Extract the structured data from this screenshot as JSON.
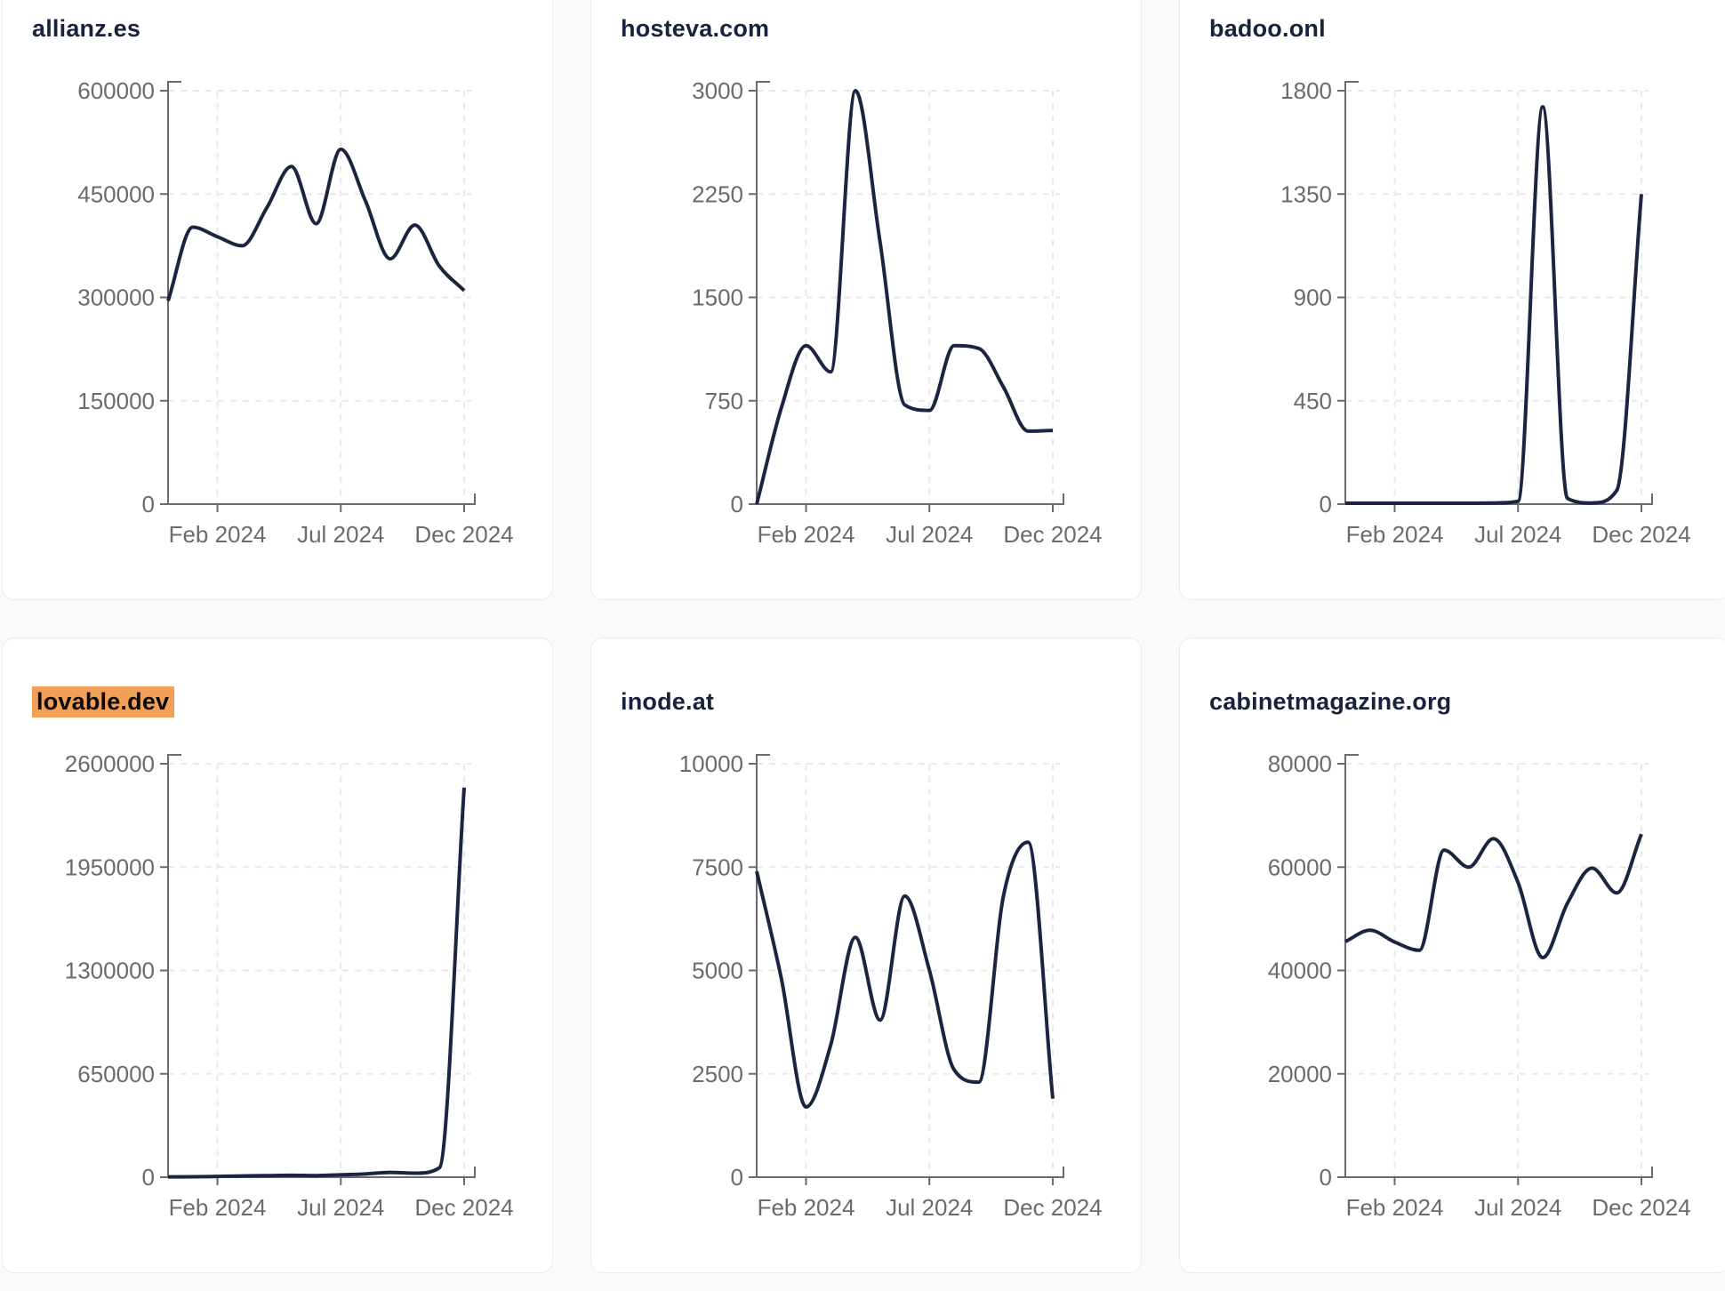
{
  "page": {
    "background": "#fafafb",
    "card_background": "#ffffff",
    "card_border": "#ebebee"
  },
  "style": {
    "line_color": "#1c2540",
    "title_color": "#18223c",
    "axis_color": "#6b6b6b",
    "tick_label_color": "#6b6b6b",
    "grid_color": "#e9e9ec",
    "highlight_background": "#f2a057",
    "highlight_text_color": "#0b0b0b"
  },
  "chart_data": [
    {
      "type": "line",
      "title": "allianz.es",
      "highlighted": false,
      "x": [
        "Dec 2023",
        "Jan 2024",
        "Feb 2024",
        "Mar 2024",
        "Apr 2024",
        "May 2024",
        "Jun 2024",
        "Jul 2024",
        "Aug 2024",
        "Sep 2024",
        "Oct 2024",
        "Nov 2024",
        "Dec 2024"
      ],
      "values": [
        295000,
        402000,
        388000,
        375000,
        430000,
        490000,
        407000,
        515000,
        440000,
        356000,
        405000,
        345000,
        310000
      ],
      "ylim": [
        0,
        600000
      ],
      "yticks": [
        0,
        150000,
        300000,
        450000,
        600000
      ],
      "xticks": [
        {
          "label": "Feb 2024",
          "index": 2
        },
        {
          "label": "Jul 2024",
          "index": 7
        },
        {
          "label": "Dec 2024",
          "index": 12
        }
      ],
      "grid": true,
      "legend": "none"
    },
    {
      "type": "line",
      "title": "hosteva.com",
      "highlighted": false,
      "x": [
        "Dec 2023",
        "Jan 2024",
        "Feb 2024",
        "Mar 2024",
        "Apr 2024",
        "May 2024",
        "Jun 2024",
        "Jul 2024",
        "Aug 2024",
        "Sep 2024",
        "Oct 2024",
        "Nov 2024",
        "Dec 2024"
      ],
      "values": [
        0,
        700,
        1150,
        960,
        3000,
        1900,
        720,
        680,
        1150,
        1130,
        850,
        530,
        535
      ],
      "ylim": [
        0,
        3000
      ],
      "yticks": [
        0,
        750,
        1500,
        2250,
        3000
      ],
      "xticks": [
        {
          "label": "Feb 2024",
          "index": 2
        },
        {
          "label": "Jul 2024",
          "index": 7
        },
        {
          "label": "Dec 2024",
          "index": 12
        }
      ],
      "grid": true,
      "legend": "none"
    },
    {
      "type": "line",
      "title": "badoo.onl",
      "highlighted": false,
      "x": [
        "Dec 2023",
        "Jan 2024",
        "Feb 2024",
        "Mar 2024",
        "Apr 2024",
        "May 2024",
        "Jun 2024",
        "Jul 2024",
        "Aug 2024",
        "Sep 2024",
        "Oct 2024",
        "Nov 2024",
        "Dec 2024"
      ],
      "values": [
        4,
        4,
        4,
        4,
        4,
        4,
        5,
        12,
        1730,
        25,
        5,
        60,
        1350
      ],
      "ylim": [
        0,
        1800
      ],
      "yticks": [
        0,
        450,
        900,
        1350,
        1800
      ],
      "xticks": [
        {
          "label": "Feb 2024",
          "index": 2
        },
        {
          "label": "Jul 2024",
          "index": 7
        },
        {
          "label": "Dec 2024",
          "index": 12
        }
      ],
      "grid": true,
      "legend": "none"
    },
    {
      "type": "line",
      "title": "lovable.dev",
      "highlighted": true,
      "x": [
        "Dec 2023",
        "Jan 2024",
        "Feb 2024",
        "Mar 2024",
        "Apr 2024",
        "May 2024",
        "Jun 2024",
        "Jul 2024",
        "Aug 2024",
        "Sep 2024",
        "Oct 2024",
        "Nov 2024",
        "Dec 2024"
      ],
      "values": [
        2000,
        3000,
        5000,
        8000,
        10000,
        12000,
        10000,
        15000,
        20000,
        30000,
        25000,
        60000,
        2450000
      ],
      "ylim": [
        0,
        2600000
      ],
      "yticks": [
        0,
        650000,
        1300000,
        1950000,
        2600000
      ],
      "xticks": [
        {
          "label": "Feb 2024",
          "index": 2
        },
        {
          "label": "Jul 2024",
          "index": 7
        },
        {
          "label": "Dec 2024",
          "index": 12
        }
      ],
      "grid": true,
      "legend": "none"
    },
    {
      "type": "line",
      "title": "inode.at",
      "highlighted": false,
      "x": [
        "Dec 2023",
        "Jan 2024",
        "Feb 2024",
        "Mar 2024",
        "Apr 2024",
        "May 2024",
        "Jun 2024",
        "Jul 2024",
        "Aug 2024",
        "Sep 2024",
        "Oct 2024",
        "Nov 2024",
        "Dec 2024"
      ],
      "values": [
        7400,
        4800,
        1700,
        3200,
        5800,
        3800,
        6800,
        5000,
        2600,
        2300,
        6800,
        8100,
        1900
      ],
      "ylim": [
        0,
        10000
      ],
      "yticks": [
        0,
        2500,
        5000,
        7500,
        10000
      ],
      "xticks": [
        {
          "label": "Feb 2024",
          "index": 2
        },
        {
          "label": "Jul 2024",
          "index": 7
        },
        {
          "label": "Dec 2024",
          "index": 12
        }
      ],
      "grid": true,
      "legend": "none"
    },
    {
      "type": "line",
      "title": "cabinetmagazine.org",
      "highlighted": false,
      "x": [
        "Dec 2023",
        "Jan 2024",
        "Feb 2024",
        "Mar 2024",
        "Apr 2024",
        "May 2024",
        "Jun 2024",
        "Jul 2024",
        "Aug 2024",
        "Sep 2024",
        "Oct 2024",
        "Nov 2024",
        "Dec 2024"
      ],
      "values": [
        45600,
        47800,
        45500,
        43900,
        63300,
        60000,
        65500,
        57000,
        42500,
        53000,
        59800,
        55000,
        66400
      ],
      "ylim": [
        0,
        80000
      ],
      "yticks": [
        0,
        20000,
        40000,
        60000,
        80000
      ],
      "xticks": [
        {
          "label": "Feb 2024",
          "index": 2
        },
        {
          "label": "Jul 2024",
          "index": 7
        },
        {
          "label": "Dec 2024",
          "index": 12
        }
      ],
      "grid": true,
      "legend": "none"
    }
  ]
}
